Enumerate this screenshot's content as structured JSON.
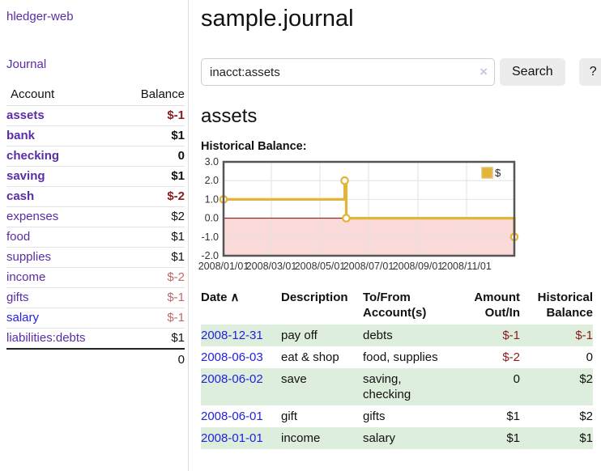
{
  "colors": {
    "link_purple": "#5a2ca6",
    "link_blue": "#2222dd",
    "neg_strong": "#8b1a1a",
    "neg_soft": "#c06a6a",
    "row_green": "#ddeedd",
    "divider": "#dddddd",
    "button_bg": "#ececec",
    "input_border": "#cccccc",
    "clear_icon": "#cdc5e0"
  },
  "brand": {
    "label": "hledger-web"
  },
  "nav": {
    "journal_label": "Journal"
  },
  "sidebar_accounts": {
    "col_account": "Account",
    "col_balance": "Balance",
    "rows": [
      {
        "name": "assets",
        "indent": 1,
        "balance": "$-1",
        "inacct": true,
        "balance_style": "neg-strong",
        "link": "visited"
      },
      {
        "name": "bank",
        "indent": 2,
        "balance": "$1",
        "inacct": true,
        "balance_style": "pos",
        "link": "visited"
      },
      {
        "name": "checking",
        "indent": 3,
        "balance": "0",
        "inacct": true,
        "balance_style": "pos",
        "link": "visited"
      },
      {
        "name": "saving",
        "indent": 3,
        "balance": "$1",
        "inacct": true,
        "balance_style": "pos",
        "link": "visited"
      },
      {
        "name": "cash",
        "indent": 2,
        "balance": "$-2",
        "inacct": true,
        "balance_style": "neg-strong",
        "link": "visited"
      },
      {
        "name": "expenses",
        "indent": 1,
        "balance": "$2",
        "inacct": false,
        "balance_style": "pos",
        "link": "visited"
      },
      {
        "name": "food",
        "indent": 2,
        "balance": "$1",
        "inacct": false,
        "balance_style": "pos",
        "link": "visited"
      },
      {
        "name": "supplies",
        "indent": 2,
        "balance": "$1",
        "inacct": false,
        "balance_style": "pos",
        "link": "visited"
      },
      {
        "name": "income",
        "indent": 1,
        "balance": "$-2",
        "inacct": false,
        "balance_style": "neg-soft",
        "link": "visited"
      },
      {
        "name": "gifts",
        "indent": 2,
        "balance": "$-1",
        "inacct": false,
        "balance_style": "neg-soft",
        "link": "visited"
      },
      {
        "name": "salary",
        "indent": 2,
        "balance": "$-1",
        "inacct": false,
        "balance_style": "neg-soft",
        "link": "unvisited"
      },
      {
        "name": "liabilities:debts",
        "indent": 1,
        "balance": "$1",
        "inacct": false,
        "balance_style": "pos",
        "link": "visited"
      }
    ],
    "total": "0"
  },
  "page": {
    "title": "sample.journal",
    "account_heading": "assets",
    "chart_heading": "Historical Balance:"
  },
  "search": {
    "value": "inacct:assets",
    "clear_icon": "×",
    "button_label": "Search",
    "help_label": "?"
  },
  "chart_data": {
    "type": "line",
    "subtype": "step-after",
    "title": "Historical Balance:",
    "x_range": [
      "2008-01-01",
      "2008-12-31"
    ],
    "x_ticks": [
      "2008/01/01",
      "2008/03/01",
      "2008/05/01",
      "2008/07/01",
      "2008/09/01",
      "2008/11/01"
    ],
    "y_ticks": [
      3.0,
      2.0,
      1.0,
      0.0,
      -1.0,
      -2.0
    ],
    "ylim": [
      -2,
      3
    ],
    "grid": true,
    "legend_position": "top-right",
    "series": [
      {
        "name": "$",
        "color": "#e2b438",
        "marker": "circle-open",
        "points": [
          [
            "2008-01-01",
            1
          ],
          [
            "2008-06-01",
            2
          ],
          [
            "2008-06-03",
            0
          ],
          [
            "2008-12-31",
            -1
          ]
        ]
      }
    ],
    "negative_region_color": "#fbdada",
    "zero_line_color": "#8b0000",
    "grid_color": "#e2e2e2",
    "border_color": "#555555",
    "legend_box_stroke": "#dcc47c"
  },
  "register": {
    "headers": {
      "date": "Date",
      "sort_icon": "∧",
      "description": "Description",
      "accounts": "To/From Account(s)",
      "amount": "Amount Out/In",
      "balance": "Historical Balance"
    },
    "rows": [
      {
        "date": "2008-12-31",
        "description": "pay off",
        "accounts": "debts",
        "amount": "$-1",
        "balance": "$-1"
      },
      {
        "date": "2008-06-03",
        "description": "eat & shop",
        "accounts": "food, supplies",
        "amount": "$-2",
        "balance": "0"
      },
      {
        "date": "2008-06-02",
        "description": "save",
        "accounts": "saving, checking",
        "amount": "0",
        "balance": "$2"
      },
      {
        "date": "2008-06-01",
        "description": "gift",
        "accounts": "gifts",
        "amount": "$1",
        "balance": "$2"
      },
      {
        "date": "2008-01-01",
        "description": "income",
        "accounts": "salary",
        "amount": "$1",
        "balance": "$1"
      }
    ]
  }
}
